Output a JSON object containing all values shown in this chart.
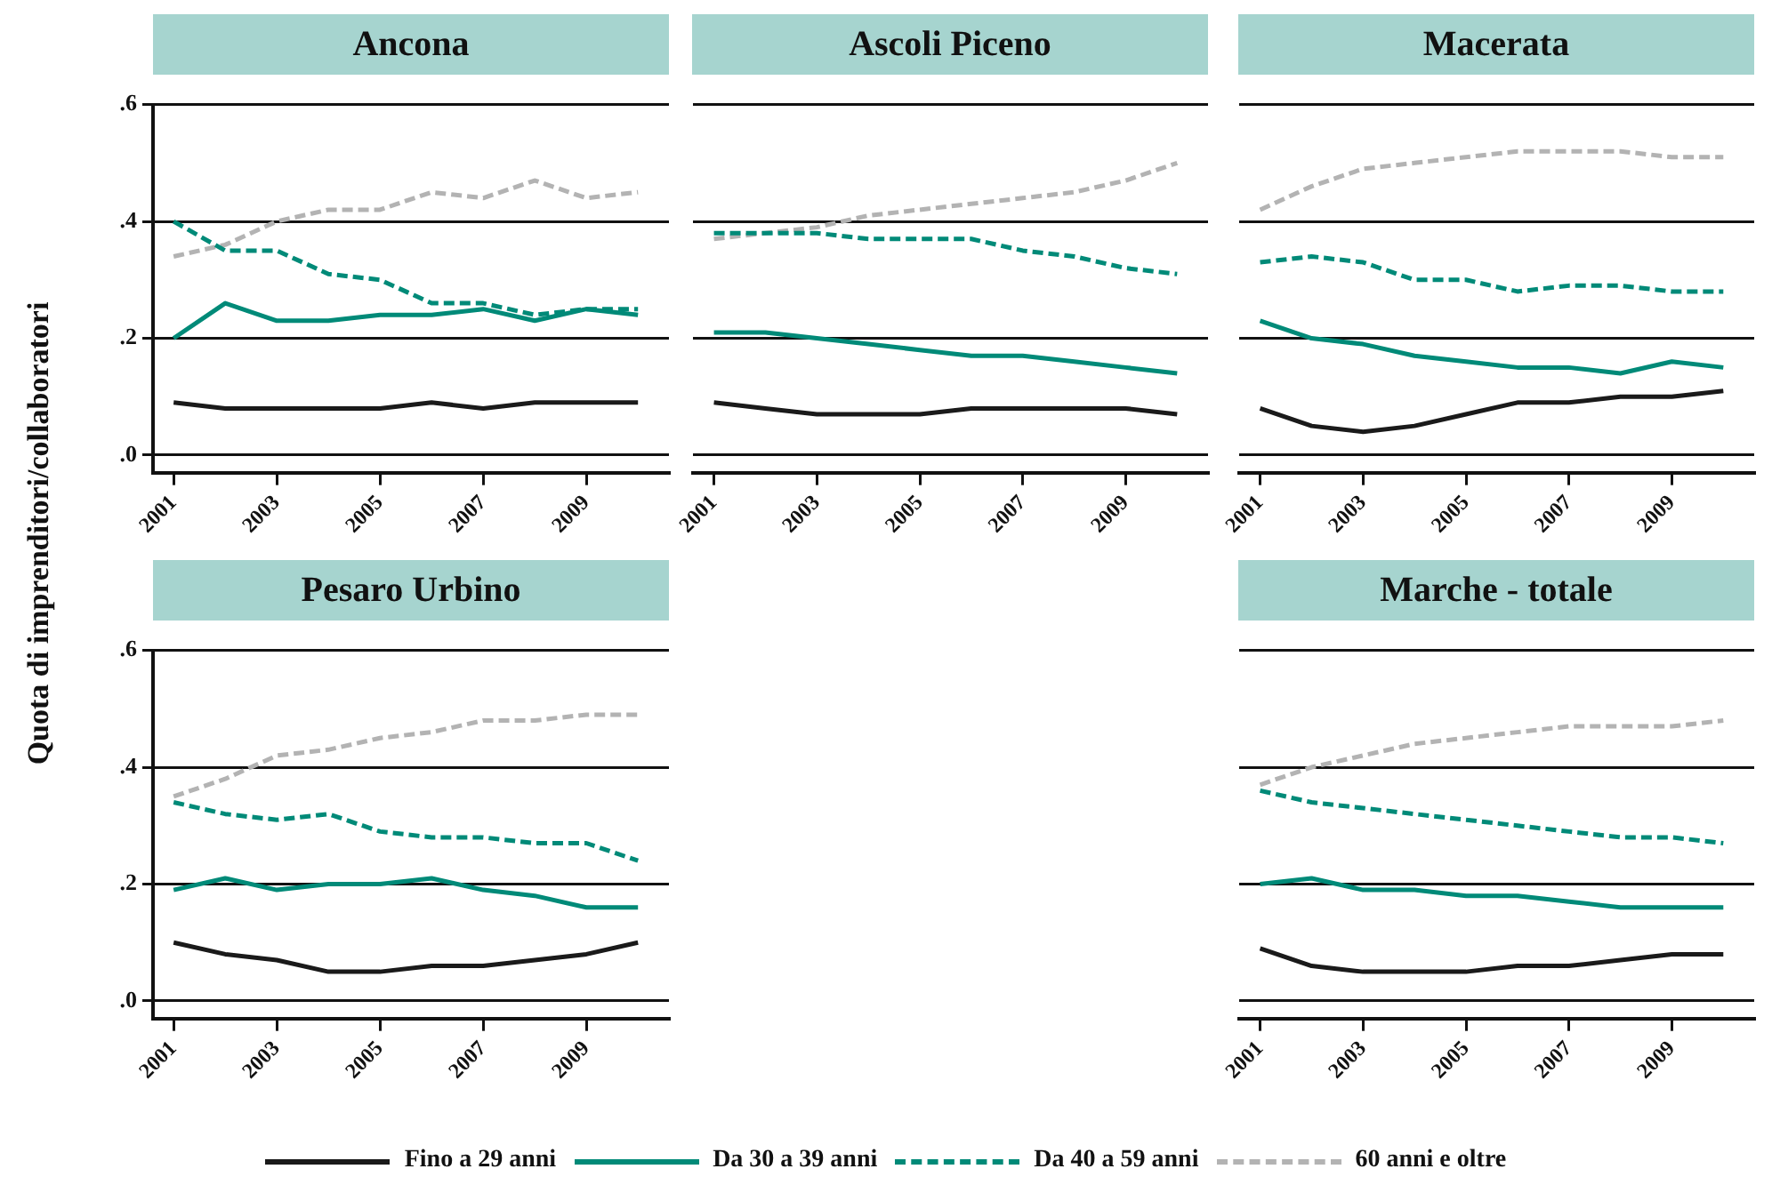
{
  "chart_data": [
    {
      "type": "line",
      "title": "Ancona",
      "ylabel": "Quota di imprenditori/collaboratori",
      "x": [
        2001,
        2002,
        2003,
        2004,
        2005,
        2006,
        2007,
        2008,
        2009,
        2010
      ],
      "xlim": [
        2000.6,
        2010.6
      ],
      "xticks": [
        2001,
        2003,
        2005,
        2007,
        2009
      ],
      "ylim": [
        -0.03,
        0.6
      ],
      "yticks": [
        {
          "value": 0,
          "label": ".0"
        },
        {
          "value": 0.2,
          "label": ".2"
        },
        {
          "value": 0.4,
          "label": ".4"
        },
        {
          "value": 0.6,
          "label": ".6"
        }
      ],
      "grid": "y",
      "legend": "bottom",
      "series": [
        {
          "name": "Fino a 29 anni",
          "color": "#1a1a1a",
          "line_style": "solid",
          "values": [
            0.09,
            0.08,
            0.08,
            0.08,
            0.08,
            0.09,
            0.08,
            0.09,
            0.09,
            0.09
          ]
        },
        {
          "name": "Da 30 a 39 anni",
          "color": "#008a78",
          "line_style": "solid",
          "values": [
            0.2,
            0.26,
            0.23,
            0.23,
            0.24,
            0.24,
            0.25,
            0.23,
            0.25,
            0.24
          ]
        },
        {
          "name": "Da 40 a 59 anni",
          "color": "#008a78",
          "line_style": "dashed",
          "values": [
            0.4,
            0.35,
            0.35,
            0.31,
            0.3,
            0.26,
            0.26,
            0.24,
            0.25,
            0.25
          ]
        },
        {
          "name": "60 anni e oltre",
          "color": "#b3b3b3",
          "line_style": "dashed",
          "values": [
            0.34,
            0.36,
            0.4,
            0.42,
            0.42,
            0.45,
            0.44,
            0.47,
            0.44,
            0.45
          ]
        }
      ]
    },
    {
      "type": "line",
      "title": "Ascoli Piceno",
      "x": [
        2001,
        2002,
        2003,
        2004,
        2005,
        2006,
        2007,
        2008,
        2009,
        2010
      ],
      "xlim": [
        2000.6,
        2010.6
      ],
      "xticks": [
        2001,
        2003,
        2005,
        2007,
        2009
      ],
      "ylim": [
        -0.03,
        0.6
      ],
      "yticks": [
        0,
        0.2,
        0.4,
        0.6
      ],
      "grid": "y",
      "tick_labels": "x",
      "series": [
        {
          "color": "#1a1a1a",
          "line_style": "solid",
          "values": [
            0.09,
            0.08,
            0.07,
            0.07,
            0.07,
            0.08,
            0.08,
            0.08,
            0.08,
            0.07
          ]
        },
        {
          "color": "#008a78",
          "line_style": "solid",
          "values": [
            0.21,
            0.21,
            0.2,
            0.19,
            0.18,
            0.17,
            0.17,
            0.16,
            0.15,
            0.14
          ]
        },
        {
          "color": "#008a78",
          "line_style": "dashed",
          "values": [
            0.38,
            0.38,
            0.38,
            0.37,
            0.37,
            0.37,
            0.35,
            0.34,
            0.32,
            0.31
          ]
        },
        {
          "color": "#b3b3b3",
          "line_style": "dashed",
          "values": [
            0.37,
            0.38,
            0.39,
            0.41,
            0.42,
            0.43,
            0.44,
            0.45,
            0.47,
            0.5
          ]
        }
      ]
    },
    {
      "type": "line",
      "title": "Macerata",
      "x": [
        2001,
        2002,
        2003,
        2004,
        2005,
        2006,
        2007,
        2008,
        2009,
        2010
      ],
      "xlim": [
        2000.6,
        2010.6
      ],
      "xticks": [
        2001,
        2003,
        2005,
        2007,
        2009
      ],
      "ylim": [
        -0.03,
        0.6
      ],
      "yticks": [
        0,
        0.2,
        0.4,
        0.6
      ],
      "grid": "y",
      "tick_labels": "x",
      "series": [
        {
          "color": "#1a1a1a",
          "line_style": "solid",
          "values": [
            0.08,
            0.05,
            0.04,
            0.05,
            0.07,
            0.09,
            0.09,
            0.1,
            0.1,
            0.11
          ]
        },
        {
          "color": "#008a78",
          "line_style": "solid",
          "values": [
            0.23,
            0.2,
            0.19,
            0.17,
            0.16,
            0.15,
            0.15,
            0.14,
            0.16,
            0.15
          ]
        },
        {
          "color": "#008a78",
          "line_style": "dashed",
          "values": [
            0.33,
            0.34,
            0.33,
            0.3,
            0.3,
            0.28,
            0.29,
            0.29,
            0.28,
            0.28
          ]
        },
        {
          "color": "#b3b3b3",
          "line_style": "dashed",
          "values": [
            0.42,
            0.46,
            0.49,
            0.5,
            0.51,
            0.52,
            0.52,
            0.52,
            0.51,
            0.51
          ]
        }
      ]
    },
    {
      "type": "line",
      "title": "Pesaro Urbino",
      "x": [
        2001,
        2002,
        2003,
        2004,
        2005,
        2006,
        2007,
        2008,
        2009,
        2010
      ],
      "xlim": [
        2000.6,
        2010.6
      ],
      "xticks": [
        2001,
        2003,
        2005,
        2007,
        2009
      ],
      "ylim": [
        -0.03,
        0.6
      ],
      "yticks": [
        {
          "value": 0,
          "label": ".0"
        },
        {
          "value": 0.2,
          "label": ".2"
        },
        {
          "value": 0.4,
          "label": ".4"
        },
        {
          "value": 0.6,
          "label": ".6"
        }
      ],
      "grid": "y",
      "series": [
        {
          "color": "#1a1a1a",
          "line_style": "solid",
          "values": [
            0.1,
            0.08,
            0.07,
            0.05,
            0.05,
            0.06,
            0.06,
            0.07,
            0.08,
            0.1
          ]
        },
        {
          "color": "#008a78",
          "line_style": "solid",
          "values": [
            0.19,
            0.21,
            0.19,
            0.2,
            0.2,
            0.21,
            0.19,
            0.18,
            0.16,
            0.16
          ]
        },
        {
          "color": "#008a78",
          "line_style": "dashed",
          "values": [
            0.34,
            0.32,
            0.31,
            0.32,
            0.29,
            0.28,
            0.28,
            0.27,
            0.27,
            0.24
          ]
        },
        {
          "color": "#b3b3b3",
          "line_style": "dashed",
          "values": [
            0.35,
            0.38,
            0.42,
            0.43,
            0.45,
            0.46,
            0.48,
            0.48,
            0.49,
            0.49
          ]
        }
      ]
    },
    {
      "type": "line",
      "title": "Marche - totale",
      "x": [
        2001,
        2002,
        2003,
        2004,
        2005,
        2006,
        2007,
        2008,
        2009,
        2010
      ],
      "xlim": [
        2000.6,
        2010.6
      ],
      "xticks": [
        2001,
        2003,
        2005,
        2007,
        2009
      ],
      "ylim": [
        -0.03,
        0.6
      ],
      "yticks": [
        0,
        0.2,
        0.4,
        0.6
      ],
      "grid": "y",
      "tick_labels": "x",
      "series": [
        {
          "color": "#1a1a1a",
          "line_style": "solid",
          "values": [
            0.09,
            0.06,
            0.05,
            0.05,
            0.05,
            0.06,
            0.06,
            0.07,
            0.08,
            0.08
          ]
        },
        {
          "color": "#008a78",
          "line_style": "solid",
          "values": [
            0.2,
            0.21,
            0.19,
            0.19,
            0.18,
            0.18,
            0.17,
            0.16,
            0.16,
            0.16
          ]
        },
        {
          "color": "#008a78",
          "line_style": "dashed",
          "values": [
            0.36,
            0.34,
            0.33,
            0.32,
            0.31,
            0.3,
            0.29,
            0.28,
            0.28,
            0.27
          ]
        },
        {
          "color": "#b3b3b3",
          "line_style": "dashed",
          "values": [
            0.37,
            0.4,
            0.42,
            0.44,
            0.45,
            0.46,
            0.47,
            0.47,
            0.47,
            0.48
          ]
        }
      ]
    }
  ]
}
